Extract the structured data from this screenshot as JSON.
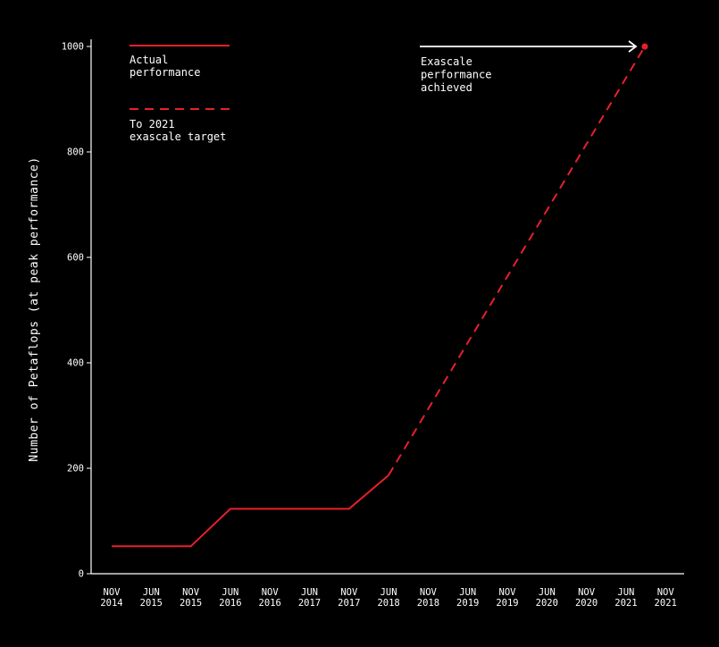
{
  "chart_data": {
    "type": "line",
    "title": "",
    "ylabel": "Number of Petaflops (at peak performance)",
    "xlabel": "",
    "ylim": [
      0,
      1000
    ],
    "yticks": [
      0,
      200,
      400,
      600,
      800,
      1000
    ],
    "categories": [
      [
        "NOV",
        "2014"
      ],
      [
        "JUN",
        "2015"
      ],
      [
        "NOV",
        "2015"
      ],
      [
        "JUN",
        "2016"
      ],
      [
        "NOV",
        "2016"
      ],
      [
        "JUN",
        "2017"
      ],
      [
        "NOV",
        "2017"
      ],
      [
        "JUN",
        "2018"
      ],
      [
        "NOV",
        "2018"
      ],
      [
        "JUN",
        "2019"
      ],
      [
        "NOV",
        "2019"
      ],
      [
        "JUN",
        "2020"
      ],
      [
        "NOV",
        "2020"
      ],
      [
        "JUN",
        "2021"
      ],
      [
        "NOV",
        "2021"
      ]
    ],
    "series": [
      {
        "name": "Actual performance",
        "style": "solid",
        "color": "#e8202a",
        "points": [
          {
            "x": "NOV 2014",
            "y": 52
          },
          {
            "x": "JUN 2015",
            "y": 52
          },
          {
            "x": "NOV 2015",
            "y": 52
          },
          {
            "x": "JUN 2016",
            "y": 123
          },
          {
            "x": "NOV 2016",
            "y": 123
          },
          {
            "x": "JUN 2017",
            "y": 123
          },
          {
            "x": "NOV 2017",
            "y": 123
          },
          {
            "x": "JUN 2018",
            "y": 187
          }
        ]
      },
      {
        "name": "To 2021 exascale target",
        "style": "dashed",
        "color": "#e8202a",
        "points": [
          {
            "x": "JUN 2018",
            "y": 187
          },
          {
            "x": "JUN 2021 + ",
            "y": 1000
          }
        ]
      }
    ],
    "target_marker": {
      "y": 1000,
      "color": "#e8202a"
    },
    "legend": {
      "position": "top-left",
      "items": [
        {
          "lines": [
            "Actual",
            "performance"
          ],
          "style": "solid"
        },
        {
          "lines": [
            "To 2021",
            "exascale target"
          ],
          "style": "dashed"
        }
      ]
    },
    "annotation": {
      "lines": [
        "Exascale",
        "performance",
        "achieved"
      ],
      "arrow_color": "#ffffff"
    },
    "grid": false,
    "background": "#000000",
    "axis_color": "#ffffff"
  }
}
